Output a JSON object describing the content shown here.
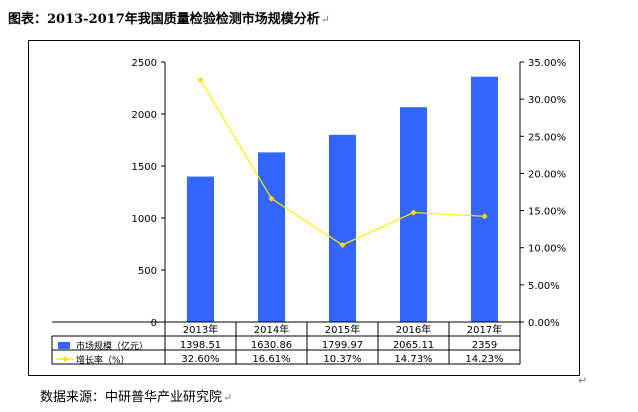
{
  "title": "图表：2013-2017年我国质量检验检测市场规模分析",
  "paragraph_mark": "↵",
  "source": "数据来源：中研普华产业研究院",
  "colors": {
    "bar": "#3366ff",
    "line": "#ffee00",
    "marker": "#ffdd00"
  },
  "chart_data": {
    "type": "bar",
    "categories": [
      "2013年",
      "2014年",
      "2015年",
      "2016年",
      "2017年"
    ],
    "series": [
      {
        "name": "市场规模（亿元）",
        "type": "bar",
        "axis": "left",
        "values": [
          1398.51,
          1630.86,
          1799.97,
          2065.11,
          2359
        ],
        "labels": [
          "1398.51",
          "1630.86",
          "1799.97",
          "2065.11",
          "2359"
        ]
      },
      {
        "name": "增长率（%）",
        "type": "line",
        "axis": "right",
        "values": [
          32.6,
          16.61,
          10.37,
          14.73,
          14.23
        ],
        "labels": [
          "32.60%",
          "16.61%",
          "10.37%",
          "14.73%",
          "14.23%"
        ]
      }
    ],
    "y_left": {
      "lim": [
        0,
        2500
      ],
      "ticks": [
        0,
        500,
        1000,
        1500,
        2000,
        2500
      ],
      "tick_labels": [
        "0",
        "500",
        "1000",
        "1500",
        "2000",
        "2500"
      ]
    },
    "y_right": {
      "lim": [
        0,
        35
      ],
      "ticks": [
        0,
        5,
        10,
        15,
        20,
        25,
        30,
        35
      ],
      "tick_labels": [
        "0.00%",
        "5.00%",
        "10.00%",
        "15.00%",
        "20.00%",
        "25.00%",
        "30.00%",
        "35.00%"
      ]
    },
    "grid": false,
    "legend": "data-table"
  }
}
